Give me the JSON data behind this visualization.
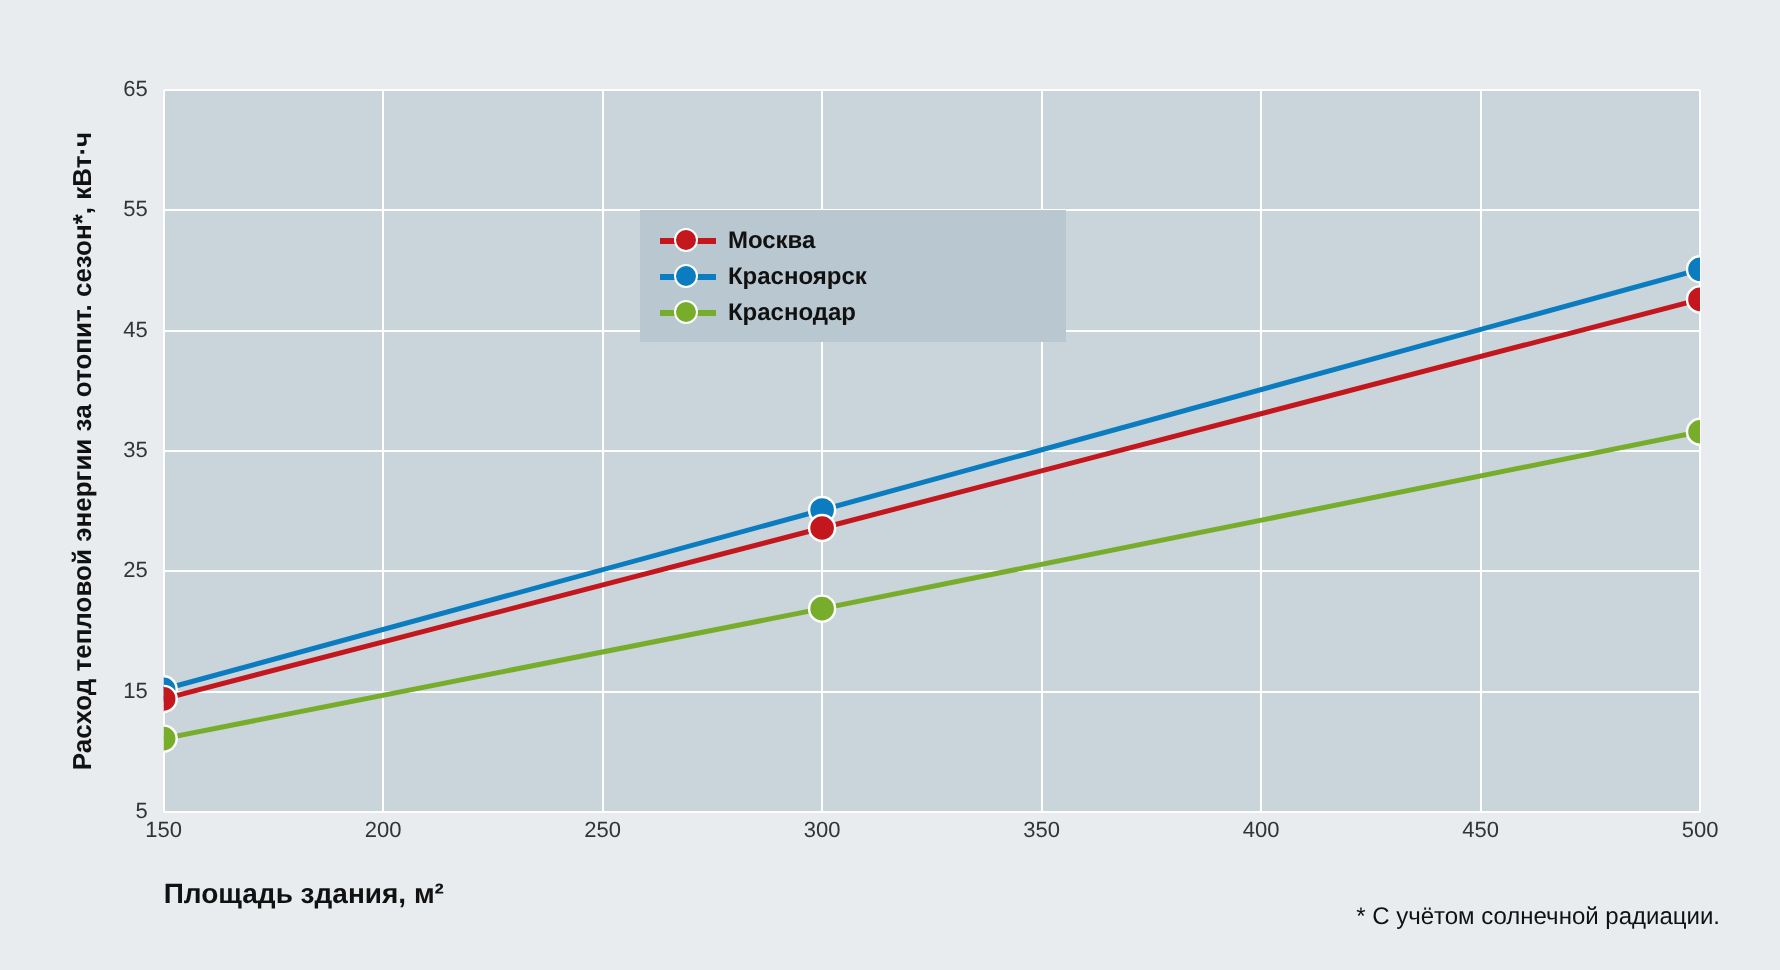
{
  "chart_data": {
    "type": "line",
    "xlabel": "Площадь здания, м²",
    "ylabel": "Расход тепловой энергии за отопит. сезон*, кВт·ч",
    "x": [
      150,
      300,
      500
    ],
    "series": [
      {
        "name": "Москва",
        "color": "#c3161d",
        "values": [
          14.4,
          28.6,
          47.6
        ]
      },
      {
        "name": "Красноярск",
        "color": "#0b7cbf",
        "values": [
          15.2,
          30.1,
          50.1
        ]
      },
      {
        "name": "Краснодар",
        "color": "#77ad2b",
        "values": [
          11.1,
          21.9,
          36.6
        ]
      }
    ],
    "xlim": [
      150,
      500
    ],
    "xticks": [
      150,
      200,
      250,
      300,
      350,
      400,
      450,
      500
    ],
    "ylim": [
      5,
      65
    ],
    "yticks": [
      5,
      15,
      25,
      35,
      45,
      55,
      65
    ],
    "grid": true,
    "legend": "top left",
    "marker": "circle",
    "line_style": "solid",
    "annotations": [
      "* С учётом солнечной радиации."
    ]
  }
}
